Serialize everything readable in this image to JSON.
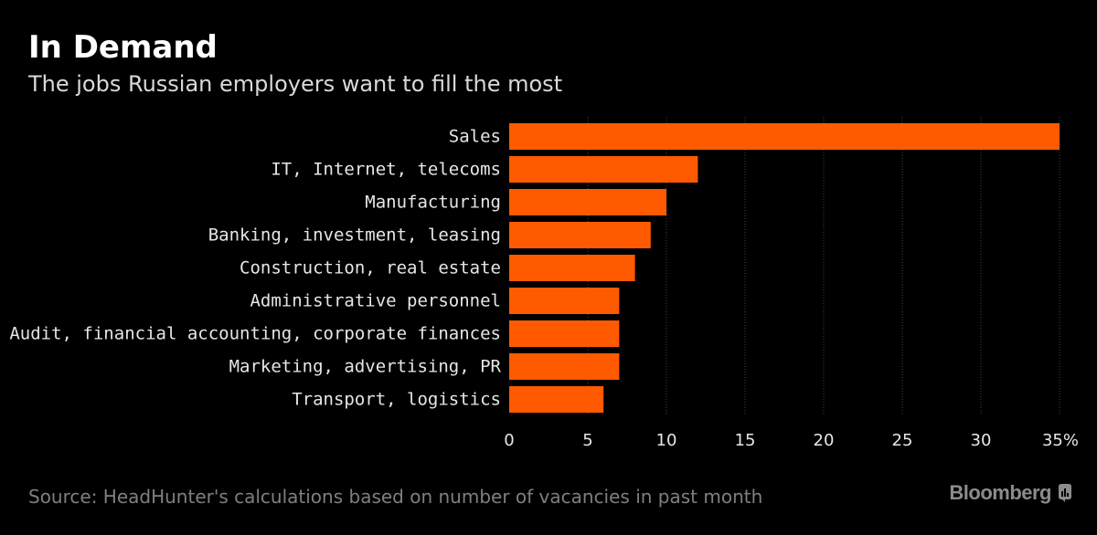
{
  "header": {
    "title": "In Demand",
    "subtitle": "The jobs Russian employers want to fill the most"
  },
  "footer": {
    "source": "Source: HeadHunter's calculations based on number of vacancies in past month",
    "brand": "Bloomberg",
    "brand_icon": "bloomberg-chart-icon"
  },
  "colors": {
    "background": "#000000",
    "bar": "#ff5a00",
    "grid": "#444444",
    "text": "#e6e6e6"
  },
  "chart_data": {
    "type": "bar",
    "orientation": "horizontal",
    "title": "In Demand",
    "subtitle": "The jobs Russian employers want to fill the most",
    "categories": [
      "Sales",
      "IT, Internet, telecoms",
      "Manufacturing",
      "Banking, investment, leasing",
      "Construction, real estate",
      "Administrative personnel",
      "Audit, financial accounting, corporate finances",
      "Marketing, advertising, PR",
      "Transport, logistics"
    ],
    "values": [
      35,
      12,
      10,
      9,
      8,
      7,
      7,
      7,
      6
    ],
    "xlabel": "",
    "ylabel": "",
    "xlim": [
      0,
      35
    ],
    "xticks": [
      0,
      5,
      10,
      15,
      20,
      25,
      30,
      35
    ],
    "xtick_labels": [
      "0",
      "5",
      "10",
      "15",
      "20",
      "25",
      "30",
      "35%"
    ],
    "grid": true,
    "legend": "none"
  }
}
